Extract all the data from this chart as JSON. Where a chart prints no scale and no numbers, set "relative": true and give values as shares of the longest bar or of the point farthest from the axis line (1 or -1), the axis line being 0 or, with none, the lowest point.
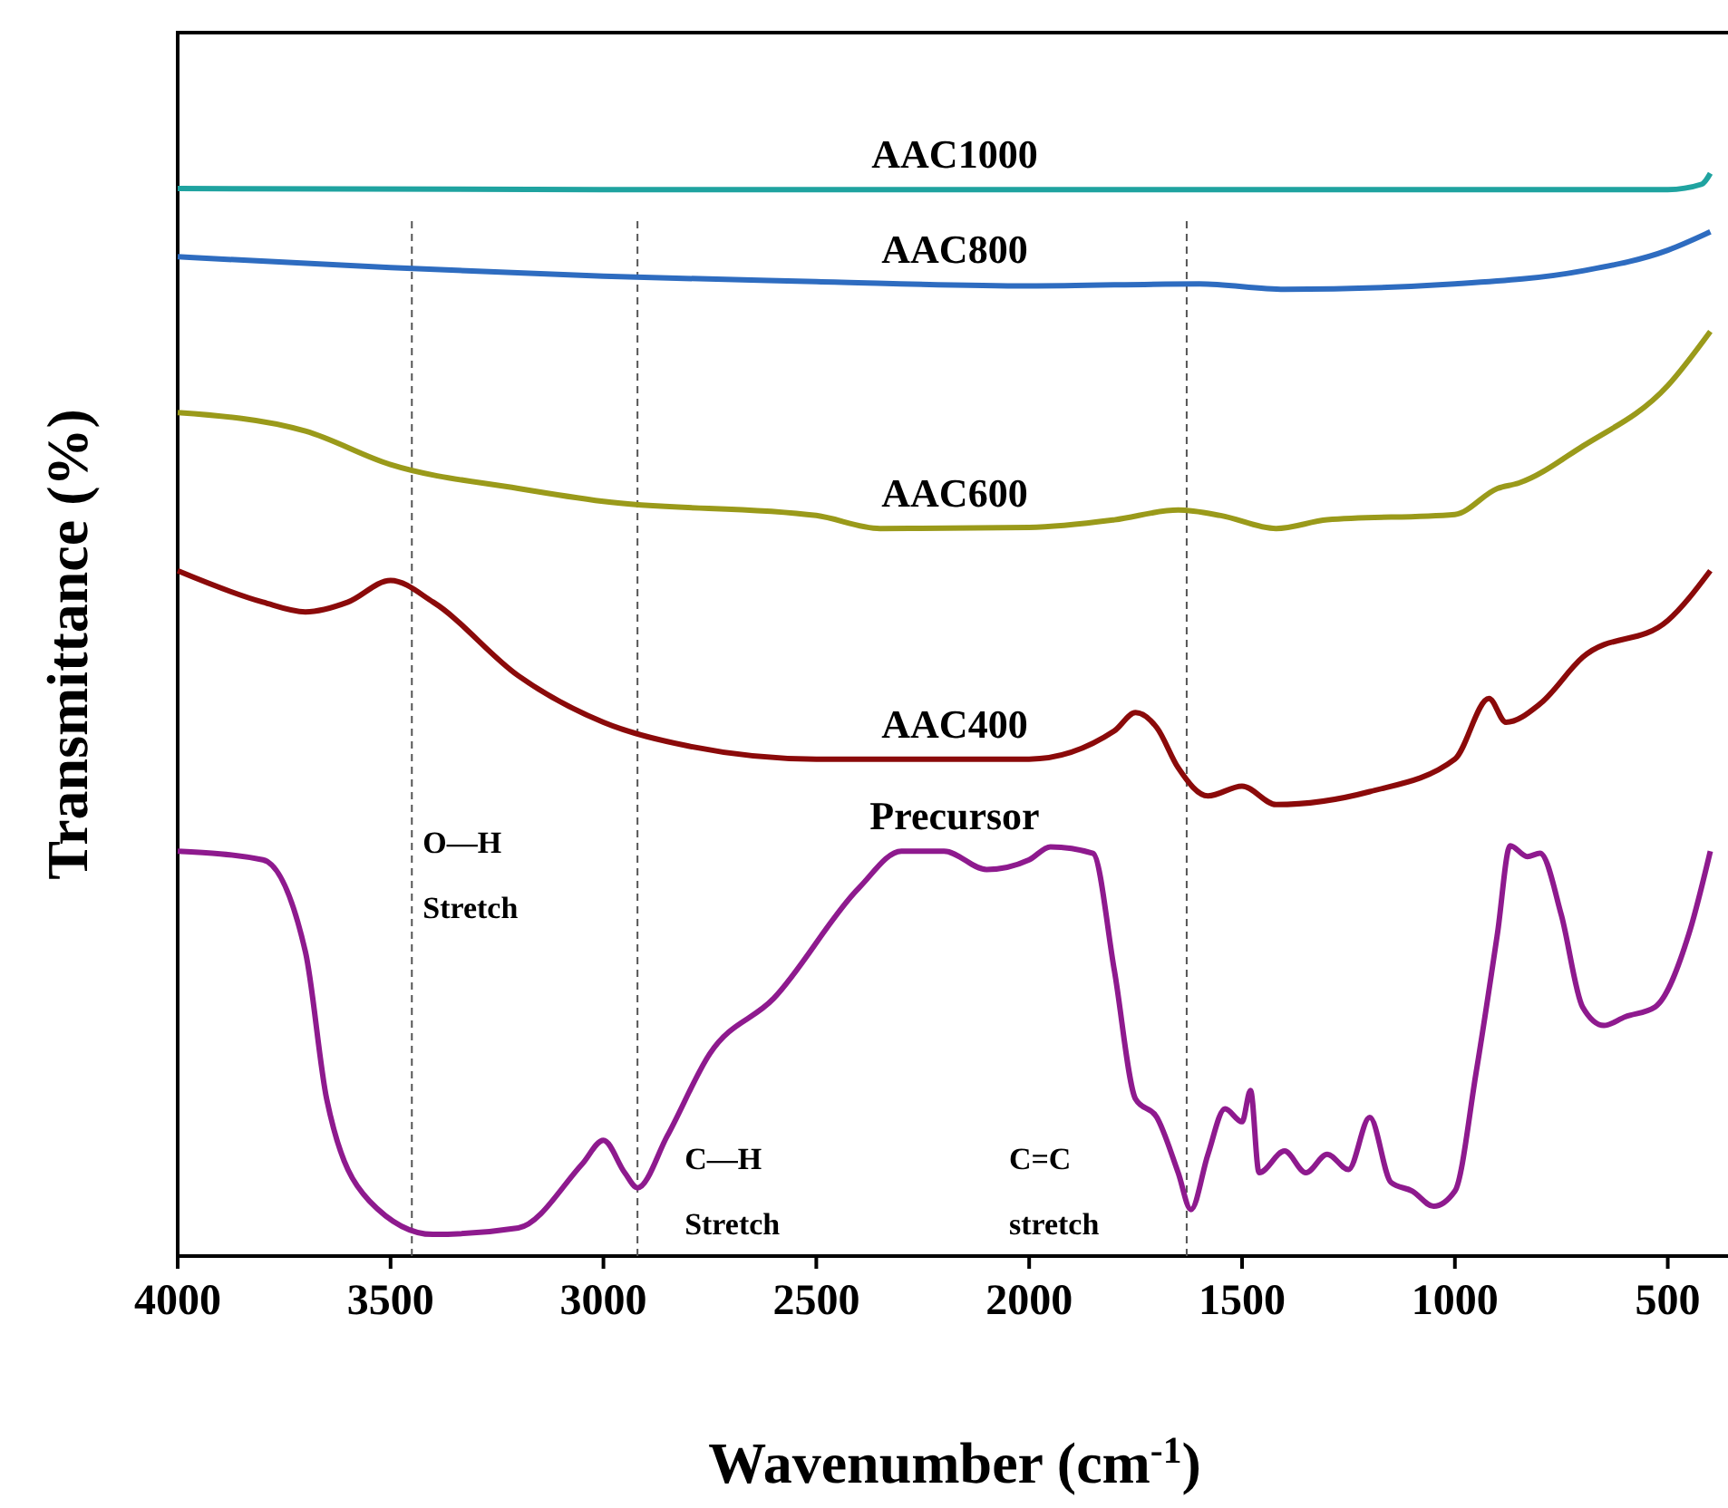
{
  "chart_data": {
    "type": "line",
    "relative": true,
    "xlabel": "Wavenumber (cm$^{-1}$)",
    "ylabel": "Transmittance (%)",
    "xlim": [
      4000,
      350
    ],
    "xticks": [
      4000,
      3500,
      3000,
      2500,
      2000,
      1500,
      1000,
      500
    ],
    "tick_labels": "x",
    "grid": false,
    "line_style": "solid",
    "series": [
      {
        "name": "AAC1000",
        "color": "#1fa3a0",
        "x": [
          4000,
          3000,
          2000,
          1000,
          500,
          420,
          400
        ],
        "values": [
          0.986,
          0.985,
          0.985,
          0.985,
          0.985,
          0.99,
          1.0
        ]
      },
      {
        "name": "AAC800",
        "color": "#2e6cc0",
        "x": [
          4000,
          3500,
          3000,
          2500,
          2000,
          1600,
          1400,
          1000,
          700,
          500,
          400
        ],
        "values": [
          0.923,
          0.913,
          0.905,
          0.9,
          0.896,
          0.898,
          0.893,
          0.898,
          0.91,
          0.929,
          0.946
        ]
      },
      {
        "name": "AAC600",
        "color": "#9a9a1a",
        "x": [
          4000,
          3700,
          3500,
          3200,
          3000,
          2500,
          2350,
          2000,
          1800,
          1650,
          1550,
          1420,
          1300,
          1000,
          900,
          850,
          700,
          500,
          400
        ],
        "values": [
          0.779,
          0.762,
          0.731,
          0.709,
          0.697,
          0.684,
          0.672,
          0.673,
          0.68,
          0.689,
          0.684,
          0.672,
          0.68,
          0.685,
          0.709,
          0.714,
          0.748,
          0.804,
          0.854
        ]
      },
      {
        "name": "AAC400",
        "color": "#8b0a0a",
        "x": [
          4000,
          3800,
          3700,
          3600,
          3500,
          3400,
          3200,
          3000,
          2800,
          2500,
          2000,
          1800,
          1750,
          1700,
          1650,
          1580,
          1500,
          1420,
          1200,
          1000,
          920,
          880,
          800,
          700,
          500,
          400
        ],
        "values": [
          0.633,
          0.604,
          0.595,
          0.604,
          0.624,
          0.604,
          0.536,
          0.493,
          0.471,
          0.459,
          0.459,
          0.485,
          0.502,
          0.488,
          0.451,
          0.425,
          0.434,
          0.417,
          0.429,
          0.459,
          0.515,
          0.493,
          0.51,
          0.553,
          0.587,
          0.633
        ]
      },
      {
        "name": "Precursor",
        "color": "#8e1a8e",
        "x": [
          4000,
          3800,
          3700,
          3650,
          3550,
          3400,
          3200,
          3050,
          3000,
          2950,
          2920,
          2850,
          2750,
          2600,
          2400,
          2300,
          2200,
          2100,
          2000,
          1950,
          1850,
          1800,
          1750,
          1700,
          1650,
          1620,
          1580,
          1540,
          1500,
          1480,
          1460,
          1400,
          1350,
          1300,
          1250,
          1200,
          1150,
          1100,
          1050,
          1000,
          950,
          900,
          870,
          830,
          800,
          750,
          700,
          650,
          600,
          530,
          450,
          400
        ],
        "values": [
          0.374,
          0.366,
          0.281,
          0.145,
          0.051,
          0.02,
          0.026,
          0.085,
          0.107,
          0.077,
          0.063,
          0.111,
          0.187,
          0.238,
          0.34,
          0.374,
          0.374,
          0.357,
          0.366,
          0.378,
          0.372,
          0.264,
          0.145,
          0.128,
          0.077,
          0.043,
          0.094,
          0.136,
          0.124,
          0.153,
          0.077,
          0.097,
          0.077,
          0.094,
          0.08,
          0.128,
          0.068,
          0.06,
          0.046,
          0.06,
          0.17,
          0.298,
          0.379,
          0.369,
          0.372,
          0.315,
          0.23,
          0.213,
          0.221,
          0.23,
          0.298,
          0.374
        ]
      }
    ],
    "ref_lines": [
      {
        "axis": "x",
        "value": 3450,
        "line_style": "dashed",
        "color": "#555555"
      },
      {
        "axis": "x",
        "value": 2920,
        "line_style": "dashed",
        "color": "#555555"
      },
      {
        "axis": "x",
        "value": 1630,
        "line_style": "dashed",
        "color": "#555555"
      }
    ],
    "annotations": [
      "O—H\nStretch",
      "C—H\nStretch",
      "C=C\nstretch"
    ]
  }
}
